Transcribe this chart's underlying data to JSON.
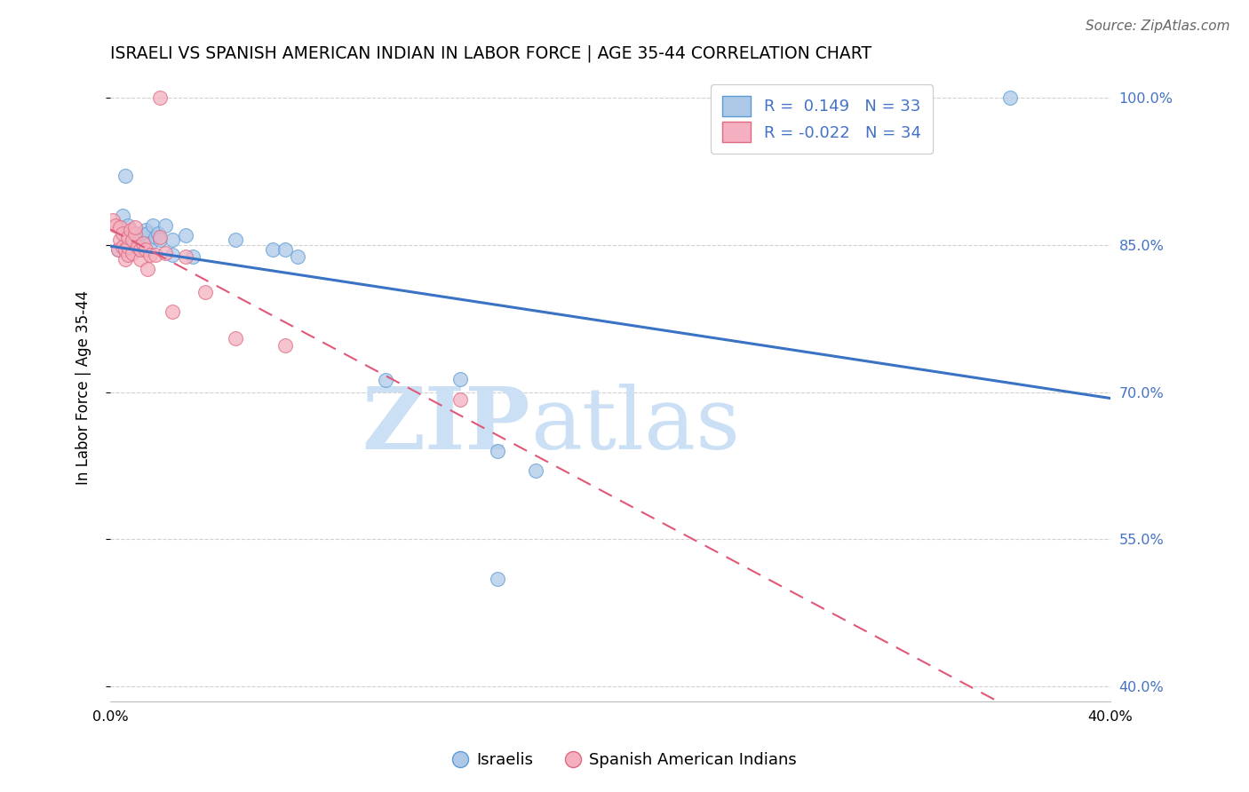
{
  "title": "ISRAELI VS SPANISH AMERICAN INDIAN IN LABOR FORCE | AGE 35-44 CORRELATION CHART",
  "source": "Source: ZipAtlas.com",
  "ylabel": "In Labor Force | Age 35-44",
  "xlabel_blue": "Israelis",
  "xlabel_pink": "Spanish American Indians",
  "xlim": [
    0.0,
    0.4
  ],
  "ylim": [
    0.385,
    1.025
  ],
  "yticks": [
    0.4,
    0.55,
    0.7,
    0.85,
    1.0
  ],
  "ytick_labels": [
    "40.0%",
    "55.0%",
    "70.0%",
    "85.0%",
    "100.0%"
  ],
  "xticks": [
    0.0,
    0.05,
    0.1,
    0.15,
    0.2,
    0.25,
    0.3,
    0.35,
    0.4
  ],
  "xtick_labels": [
    "0.0%",
    "",
    "",
    "",
    "",
    "",
    "",
    "",
    "40.0%"
  ],
  "R_blue": 0.149,
  "N_blue": 33,
  "R_pink": -0.022,
  "N_pink": 34,
  "blue_fill": "#aec9e8",
  "blue_edge": "#5b9bd5",
  "pink_fill": "#f4b0c0",
  "pink_edge": "#e06880",
  "blue_line": "#3a72c4",
  "pink_line": "#e05878",
  "grid_color": "#d0d0d0",
  "right_tick_color": "#4472c4",
  "blue_x": [
    0.003,
    0.005,
    0.006,
    0.007,
    0.008,
    0.009,
    0.01,
    0.01,
    0.011,
    0.012,
    0.013,
    0.014,
    0.015,
    0.016,
    0.017,
    0.018,
    0.019,
    0.02,
    0.022,
    0.025,
    0.025,
    0.03,
    0.033,
    0.05,
    0.065,
    0.07,
    0.075,
    0.11,
    0.14,
    0.155,
    0.17,
    0.155,
    0.36
  ],
  "blue_y": [
    0.845,
    0.88,
    0.92,
    0.87,
    0.857,
    0.85,
    0.855,
    0.858,
    0.845,
    0.862,
    0.845,
    0.865,
    0.862,
    0.852,
    0.87,
    0.858,
    0.862,
    0.855,
    0.87,
    0.855,
    0.84,
    0.86,
    0.838,
    0.855,
    0.845,
    0.845,
    0.838,
    0.712,
    0.713,
    0.64,
    0.62,
    0.51,
    1.0
  ],
  "pink_x": [
    0.001,
    0.002,
    0.003,
    0.004,
    0.004,
    0.005,
    0.005,
    0.006,
    0.006,
    0.007,
    0.007,
    0.007,
    0.008,
    0.009,
    0.009,
    0.01,
    0.01,
    0.011,
    0.012,
    0.012,
    0.013,
    0.014,
    0.015,
    0.016,
    0.018,
    0.02,
    0.022,
    0.025,
    0.03,
    0.038,
    0.05,
    0.07,
    0.14,
    0.02
  ],
  "pink_y": [
    0.875,
    0.87,
    0.845,
    0.855,
    0.868,
    0.848,
    0.862,
    0.835,
    0.845,
    0.84,
    0.848,
    0.858,
    0.865,
    0.842,
    0.855,
    0.862,
    0.868,
    0.848,
    0.835,
    0.845,
    0.852,
    0.845,
    0.825,
    0.84,
    0.84,
    0.858,
    0.842,
    0.782,
    0.838,
    0.802,
    0.755,
    0.748,
    0.692,
    1.0
  ],
  "title_fontsize": 13.5,
  "ylabel_fontsize": 12,
  "tick_fontsize": 11.5,
  "legend_fontsize": 13,
  "source_fontsize": 11
}
